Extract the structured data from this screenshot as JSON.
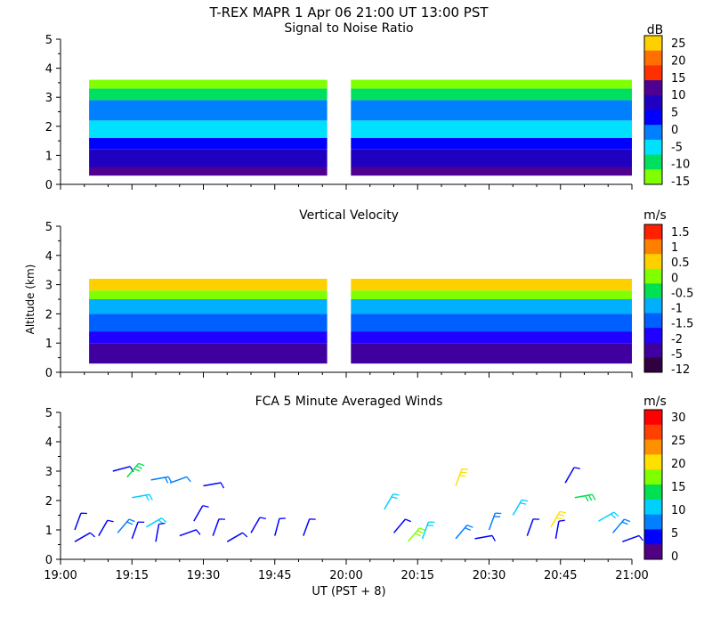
{
  "title": "T-REX  MAPR  1 Apr 06  21:00 UT  13:00  PST",
  "shared_y": {
    "label": "Altitude (km)",
    "ticks": [
      "0",
      "1",
      "2",
      "3",
      "4",
      "5"
    ],
    "range": [
      0,
      5
    ]
  },
  "shared_x": {
    "label": "UT  (PST + 8)",
    "ticks": [
      "19:00",
      "19:15",
      "19:30",
      "19:45",
      "20:00",
      "20:15",
      "20:30",
      "20:45",
      "21:00"
    ],
    "range_minutes": [
      0,
      120
    ]
  },
  "colors": {
    "snr": [
      "#80ff00",
      "#00e060",
      "#00e0ff",
      "#0080ff",
      "#0000ff",
      "#2000c0",
      "#500090",
      "#ff3000",
      "#ff7000",
      "#ffd000"
    ],
    "vv": [
      "#300040",
      "#4000a0",
      "#2000ff",
      "#0060ff",
      "#00b0ff",
      "#00e050",
      "#80ff00",
      "#ffd000",
      "#ff8000",
      "#ff2000"
    ],
    "wind": [
      "#500080",
      "#0000ff",
      "#0080ff",
      "#00d0ff",
      "#00e050",
      "#80ff00",
      "#ffe000",
      "#ff9000",
      "#ff4000",
      "#ff0000"
    ]
  },
  "chart_data": [
    {
      "type": "heatmap",
      "name": "snr",
      "title": "Signal to Noise Ratio",
      "units": "dB",
      "colorbar_ticks": [
        "25",
        "20",
        "15",
        "10",
        "5",
        "0",
        "-5",
        "-10",
        "-15"
      ],
      "gap_minutes": [
        56,
        61
      ],
      "layers": [
        {
          "alt": [
            0.3,
            0.6
          ],
          "color_index": 6
        },
        {
          "alt": [
            0.6,
            1.2
          ],
          "color_index": 5
        },
        {
          "alt": [
            1.2,
            1.6
          ],
          "color_index": 4
        },
        {
          "alt": [
            1.6,
            2.2
          ],
          "color_index": 2
        },
        {
          "alt": [
            2.2,
            2.9
          ],
          "color_index": 3
        },
        {
          "alt": [
            2.9,
            3.3
          ],
          "color_index": 1
        },
        {
          "alt": [
            3.3,
            3.6
          ],
          "color_index": 0
        }
      ]
    },
    {
      "type": "heatmap",
      "name": "vv",
      "title": "Vertical Velocity",
      "units": "m/s",
      "colorbar_ticks": [
        "1.5",
        "1",
        "0.5",
        "0",
        "-0.5",
        "-1",
        "-1.5",
        "-2",
        "-5",
        "-12"
      ],
      "gap_minutes": [
        56,
        61
      ],
      "layers": [
        {
          "alt": [
            0.3,
            1.0
          ],
          "color_index": 1
        },
        {
          "alt": [
            1.0,
            1.4
          ],
          "color_index": 2
        },
        {
          "alt": [
            1.4,
            2.0
          ],
          "color_index": 3
        },
        {
          "alt": [
            2.0,
            2.5
          ],
          "color_index": 4
        },
        {
          "alt": [
            2.5,
            2.8
          ],
          "color_index": 6
        },
        {
          "alt": [
            2.8,
            3.2
          ],
          "color_index": 7
        }
      ]
    },
    {
      "type": "scatter",
      "name": "wind",
      "title": "FCA 5 Minute Averaged Winds",
      "units": "m/s",
      "colorbar_ticks": [
        "30",
        "25",
        "20",
        "15",
        "10",
        "5",
        "0"
      ],
      "barbs": [
        {
          "t": 11,
          "alt": 3.0,
          "dir": 75,
          "spd": 4
        },
        {
          "t": 14,
          "alt": 2.8,
          "dir": 40,
          "spd": 14
        },
        {
          "t": 15,
          "alt": 2.1,
          "dir": 80,
          "spd": 12
        },
        {
          "t": 19,
          "alt": 2.7,
          "dir": 80,
          "spd": 8
        },
        {
          "t": 23,
          "alt": 2.6,
          "dir": 70,
          "spd": 7
        },
        {
          "t": 30,
          "alt": 2.5,
          "dir": 80,
          "spd": 4
        },
        {
          "t": 3,
          "alt": 1.0,
          "dir": 20,
          "spd": 4
        },
        {
          "t": 3,
          "alt": 0.6,
          "dir": 60,
          "spd": 4
        },
        {
          "t": 8,
          "alt": 0.8,
          "dir": 30,
          "spd": 4
        },
        {
          "t": 12,
          "alt": 0.9,
          "dir": 40,
          "spd": 8
        },
        {
          "t": 15,
          "alt": 0.7,
          "dir": 20,
          "spd": 6
        },
        {
          "t": 18,
          "alt": 1.1,
          "dir": 60,
          "spd": 10
        },
        {
          "t": 20,
          "alt": 0.6,
          "dir": 10,
          "spd": 4
        },
        {
          "t": 25,
          "alt": 0.8,
          "dir": 70,
          "spd": 4
        },
        {
          "t": 28,
          "alt": 1.3,
          "dir": 30,
          "spd": 4
        },
        {
          "t": 32,
          "alt": 0.8,
          "dir": 20,
          "spd": 4
        },
        {
          "t": 35,
          "alt": 0.6,
          "dir": 60,
          "spd": 4
        },
        {
          "t": 40,
          "alt": 0.9,
          "dir": 30,
          "spd": 4
        },
        {
          "t": 45,
          "alt": 0.8,
          "dir": 15,
          "spd": 4
        },
        {
          "t": 51,
          "alt": 0.8,
          "dir": 20,
          "spd": 4
        },
        {
          "t": 68,
          "alt": 1.7,
          "dir": 30,
          "spd": 10
        },
        {
          "t": 70,
          "alt": 0.9,
          "dir": 40,
          "spd": 4
        },
        {
          "t": 73,
          "alt": 0.6,
          "dir": 40,
          "spd": 16
        },
        {
          "t": 76,
          "alt": 0.7,
          "dir": 20,
          "spd": 10
        },
        {
          "t": 83,
          "alt": 2.5,
          "dir": 20,
          "spd": 20
        },
        {
          "t": 83,
          "alt": 0.7,
          "dir": 40,
          "spd": 8
        },
        {
          "t": 87,
          "alt": 0.7,
          "dir": 80,
          "spd": 4
        },
        {
          "t": 90,
          "alt": 1.0,
          "dir": 20,
          "spd": 8
        },
        {
          "t": 95,
          "alt": 1.5,
          "dir": 30,
          "spd": 12
        },
        {
          "t": 98,
          "alt": 0.8,
          "dir": 20,
          "spd": 4
        },
        {
          "t": 103,
          "alt": 1.1,
          "dir": 30,
          "spd": 20
        },
        {
          "t": 104,
          "alt": 0.7,
          "dir": 10,
          "spd": 4
        },
        {
          "t": 106,
          "alt": 2.6,
          "dir": 30,
          "spd": 4
        },
        {
          "t": 108,
          "alt": 2.1,
          "dir": 80,
          "spd": 14
        },
        {
          "t": 113,
          "alt": 1.3,
          "dir": 60,
          "spd": 10
        },
        {
          "t": 116,
          "alt": 0.9,
          "dir": 40,
          "spd": 8
        },
        {
          "t": 118,
          "alt": 0.6,
          "dir": 70,
          "spd": 4
        }
      ]
    }
  ]
}
